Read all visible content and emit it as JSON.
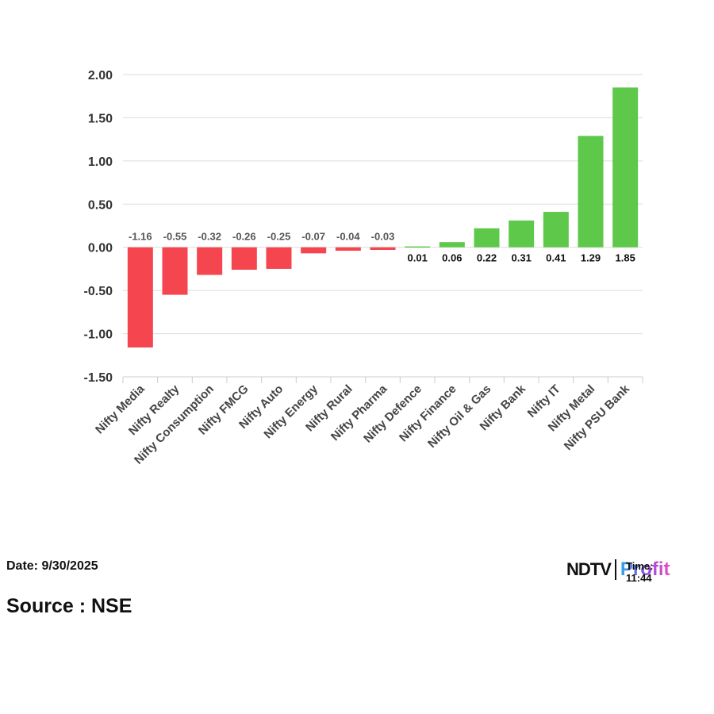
{
  "chart_data": {
    "type": "bar",
    "categories": [
      "Nifty Media",
      "Nifty Realty",
      "Nifty Consumption",
      "Nifty FMCG",
      "Nifty Auto",
      "Nifty Energy",
      "Nifty Rural",
      "Nifty Pharma",
      "Nifty Defence",
      "Nifty Finance",
      "Nifty Oil & Gas",
      "Nifty Bank",
      "Nifty IT",
      "Nifty Metal",
      "Nifty PSU Bank"
    ],
    "values": [
      -1.16,
      -0.55,
      -0.32,
      -0.26,
      -0.25,
      -0.07,
      -0.04,
      -0.03,
      0.01,
      0.06,
      0.22,
      0.31,
      0.41,
      1.29,
      1.85
    ],
    "data_labels": [
      "-1.16",
      "-0.55",
      "-0.32",
      "-0.26",
      "-0.25",
      "-0.07",
      "-0.04",
      "-0.03",
      "0.01",
      "0.06",
      "0.22",
      "0.31",
      "0.41",
      "1.29",
      "1.85"
    ],
    "y_ticks": [
      "2.00",
      "1.50",
      "1.00",
      "0.50",
      "0.00",
      "-0.50",
      "-1.00",
      "-1.50"
    ],
    "y_tick_values": [
      2.0,
      1.5,
      1.0,
      0.5,
      0.0,
      -0.5,
      -1.0,
      -1.5
    ],
    "ylim": [
      -1.5,
      2.0
    ],
    "grid": true,
    "colors": {
      "negative": "#f5464f",
      "positive": "#5ec84a"
    }
  },
  "footer": {
    "date": "Date: 9/30/2025",
    "source": "Source : NSE",
    "time": "Time: 11:44"
  },
  "logo": {
    "ndtv": "NDTV",
    "profit": "Profit"
  }
}
